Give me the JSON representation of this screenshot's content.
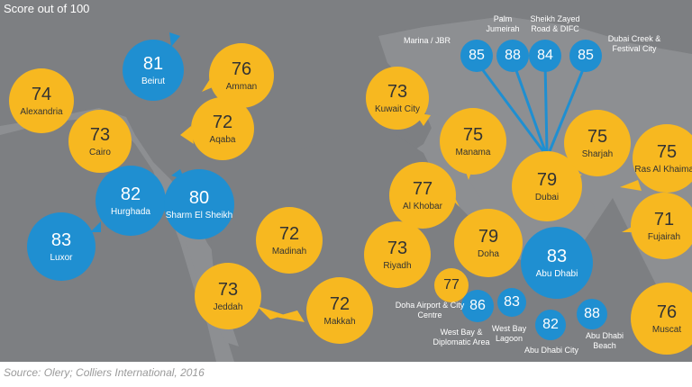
{
  "header": {
    "score_label": "Score out of 100"
  },
  "footer": {
    "source": "Source: Olery; Colliers International, 2016"
  },
  "colors": {
    "yellow": "#f7b820",
    "blue": "#1f8fd1",
    "land": "#7d7f82",
    "sea": "#8d8f92"
  },
  "locations": [
    {
      "id": "beirut",
      "score": "81",
      "city": "Beirut",
      "color": "blue"
    },
    {
      "id": "amman",
      "score": "76",
      "city": "Amman",
      "color": "yellow"
    },
    {
      "id": "alexandria",
      "score": "74",
      "city": "Alexandria",
      "color": "yellow"
    },
    {
      "id": "cairo",
      "score": "73",
      "city": "Cairo",
      "color": "yellow"
    },
    {
      "id": "aqaba",
      "score": "72",
      "city": "Aqaba",
      "color": "yellow"
    },
    {
      "id": "hurghada",
      "score": "82",
      "city": "Hurghada",
      "color": "blue"
    },
    {
      "id": "sharm",
      "score": "80",
      "city": "Sharm El Sheikh",
      "color": "blue"
    },
    {
      "id": "luxor",
      "score": "83",
      "city": "Luxor",
      "color": "blue"
    },
    {
      "id": "madinah",
      "score": "72",
      "city": "Madinah",
      "color": "yellow"
    },
    {
      "id": "jeddah",
      "score": "73",
      "city": "Jeddah",
      "color": "yellow"
    },
    {
      "id": "makkah",
      "score": "72",
      "city": "Makkah",
      "color": "yellow"
    },
    {
      "id": "kuwait",
      "score": "73",
      "city": "Kuwait City",
      "color": "yellow"
    },
    {
      "id": "manama",
      "score": "75",
      "city": "Manama",
      "color": "yellow"
    },
    {
      "id": "alkhobar",
      "score": "77",
      "city": "Al Khobar",
      "color": "yellow"
    },
    {
      "id": "riyadh",
      "score": "73",
      "city": "Riyadh",
      "color": "yellow"
    },
    {
      "id": "doha",
      "score": "79",
      "city": "Doha",
      "color": "yellow"
    },
    {
      "id": "doha_airport",
      "score": "77",
      "city": "",
      "color": "yellow"
    },
    {
      "id": "westbay_dip",
      "score": "86",
      "city": "",
      "color": "blue"
    },
    {
      "id": "westbay_lagoon",
      "score": "83",
      "city": "",
      "color": "blue"
    },
    {
      "id": "dubai",
      "score": "79",
      "city": "Dubai",
      "color": "yellow"
    },
    {
      "id": "sharjah",
      "score": "75",
      "city": "Sharjah",
      "color": "yellow"
    },
    {
      "id": "rasalkhaimah",
      "score": "75",
      "city": "Ras Al Khaimah",
      "color": "yellow"
    },
    {
      "id": "fujairah",
      "score": "71",
      "city": "Fujairah",
      "color": "yellow"
    },
    {
      "id": "abudhabi",
      "score": "83",
      "city": "Abu Dhabi",
      "color": "blue"
    },
    {
      "id": "abudhabi_city",
      "score": "82",
      "city": "",
      "color": "blue"
    },
    {
      "id": "abudhabi_beach",
      "score": "88",
      "city": "",
      "color": "blue"
    },
    {
      "id": "muscat",
      "score": "76",
      "city": "Muscat",
      "color": "yellow"
    },
    {
      "id": "marina",
      "score": "85",
      "city": "",
      "color": "blue"
    },
    {
      "id": "palm",
      "score": "88",
      "city": "",
      "color": "blue"
    },
    {
      "id": "szr",
      "score": "84",
      "city": "",
      "color": "blue"
    },
    {
      "id": "creek",
      "score": "85",
      "city": "",
      "color": "blue"
    }
  ],
  "external_labels": {
    "marina": "Marina / JBR",
    "palm": "Palm Jumeirah",
    "szr": "Sheikh Zayed Road & DIFC",
    "creek": "Dubai Creek & Festival City",
    "doha_airport": "Doha Airport & City Centre",
    "westbay_dip": "West Bay & Diplomatic Area",
    "westbay_lagoon": "West Bay Lagoon",
    "abudhabi_city": "Abu Dhabi City",
    "abudhabi_beach": "Abu Dhabi Beach"
  }
}
